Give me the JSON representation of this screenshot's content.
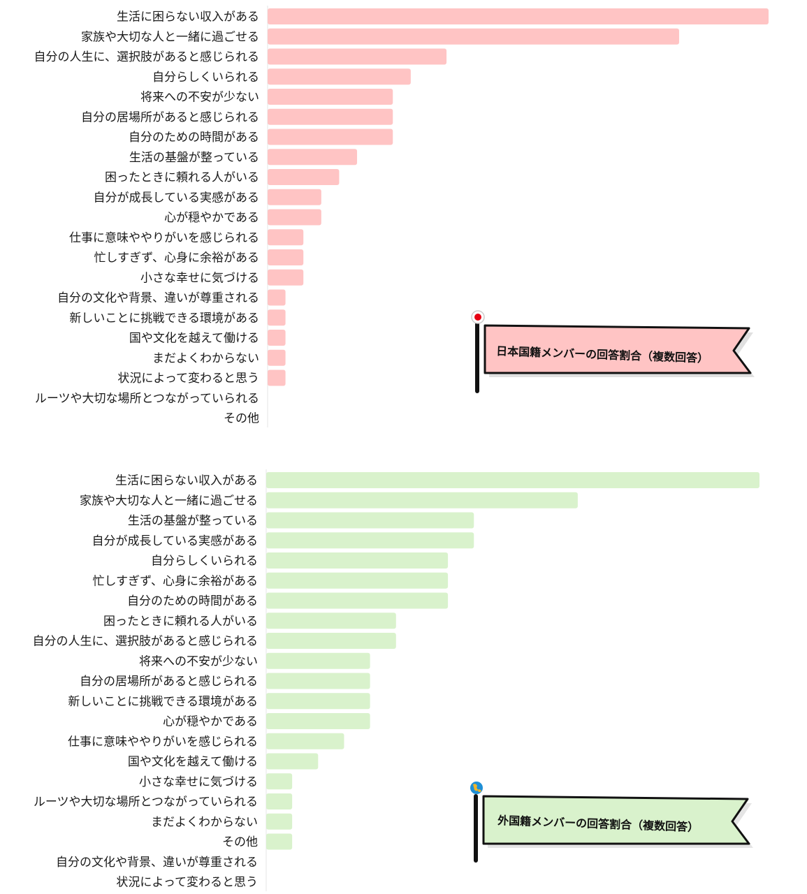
{
  "colors": {
    "japanese": "#ffc4c4",
    "foreign": "#d9f2cc",
    "japan_flag_dot": "#e60012",
    "globe_blue": "#1f8fd6",
    "globe_land": "#f0b429"
  },
  "chart_data": [
    {
      "type": "bar",
      "orientation": "horizontal",
      "name": "japanese",
      "title": "日本国籍メンバーの回答割合（複数回答）",
      "xlabel": "",
      "ylabel": "",
      "grid": false,
      "legend": "none",
      "xlim": [
        0,
        28
      ],
      "categories": [
        "生活に困らない収入がある",
        "家族や大切な人と一緒に過ごせる",
        "自分の人生に、選択肢があると感じられる",
        "自分らしくいられる",
        "将来への不安が少ない",
        "自分の居場所があると感じられる",
        "自分のための時間がある",
        "生活の基盤が整っている",
        "困ったときに頼れる人がいる",
        "自分が成長している実感がある",
        "心が穏やかである",
        "仕事に意味ややりがいを感じられる",
        "忙しすぎず、心身に余裕がある",
        "小さな幸せに気づける",
        "自分の文化や背景、違いが尊重される",
        "新しいことに挑戦できる環境がある",
        "国や文化を越えて働ける",
        "まだよくわからない",
        "状況によって変わると思う",
        "ルーツや大切な場所とつながっていられる",
        "その他"
      ],
      "values": [
        28,
        23,
        10,
        8,
        7,
        7,
        7,
        5,
        4,
        3,
        3,
        2,
        2,
        2,
        1,
        1,
        1,
        1,
        1,
        0,
        0
      ]
    },
    {
      "type": "bar",
      "orientation": "horizontal",
      "name": "foreign",
      "title": "外国籍メンバーの回答割合（複数回答）",
      "xlabel": "",
      "ylabel": "",
      "grid": false,
      "legend": "none",
      "xlim": [
        0,
        19
      ],
      "categories": [
        "生活に困らない収入がある",
        "家族や大切な人と一緒に過ごせる",
        "生活の基盤が整っている",
        "自分が成長している実感がある",
        "自分らしくいられる",
        "忙しすぎず、心身に余裕がある",
        "自分のための時間がある",
        "困ったときに頼れる人がいる",
        "自分の人生に、選択肢があると感じられる",
        "将来への不安が少ない",
        "自分の居場所があると感じられる",
        "新しいことに挑戦できる環境がある",
        "心が穏やかである",
        "仕事に意味ややりがいを感じられる",
        "国や文化を越えて働ける",
        "小さな幸せに気づける",
        "ルーツや大切な場所とつながっていられる",
        "まだよくわからない",
        "その他",
        "自分の文化や背景、違いが尊重される",
        "状況によって変わると思う"
      ],
      "values": [
        19,
        12,
        8,
        8,
        7,
        7,
        7,
        5,
        5,
        4,
        4,
        4,
        4,
        3,
        2,
        1,
        1,
        1,
        1,
        0,
        0
      ]
    }
  ]
}
